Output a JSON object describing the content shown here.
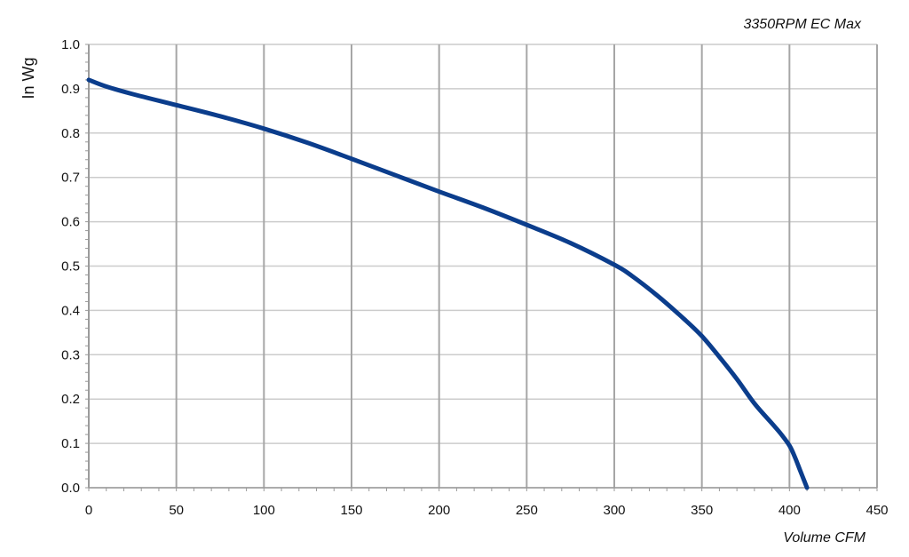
{
  "chart_data": {
    "type": "line",
    "title": "3350RPM EC Max",
    "xlabel": "Volume CFM",
    "ylabel": "In Wg",
    "xlim": [
      0,
      450
    ],
    "ylim": [
      0,
      1.0
    ],
    "x_ticks": [
      "0",
      "50",
      "100",
      "150",
      "200",
      "250",
      "300",
      "350",
      "400",
      "450"
    ],
    "y_ticks": [
      "0.0",
      "0.1",
      "0.2",
      "0.3",
      "0.4",
      "0.5",
      "0.6",
      "0.7",
      "0.8",
      "0.9",
      "1.0"
    ],
    "grid": true,
    "series": [
      {
        "color": "#0b3d8c",
        "x": [
          0,
          10,
          25,
          50,
          75,
          100,
          125,
          150,
          175,
          200,
          225,
          250,
          275,
          300,
          310,
          325,
          340,
          350,
          360,
          370,
          380,
          390,
          395,
          400,
          403,
          406,
          408,
          410
        ],
        "y": [
          0.92,
          0.905,
          0.888,
          0.863,
          0.838,
          0.81,
          0.778,
          0.742,
          0.705,
          0.668,
          0.632,
          0.593,
          0.552,
          0.503,
          0.478,
          0.432,
          0.38,
          0.342,
          0.295,
          0.245,
          0.19,
          0.145,
          0.122,
          0.095,
          0.07,
          0.04,
          0.02,
          0.0
        ]
      }
    ]
  },
  "colors": {
    "grid_major": "#a6a6a6",
    "grid_minor": "#cccccc",
    "axis": "#999999",
    "curve": "#0b3d8c"
  }
}
